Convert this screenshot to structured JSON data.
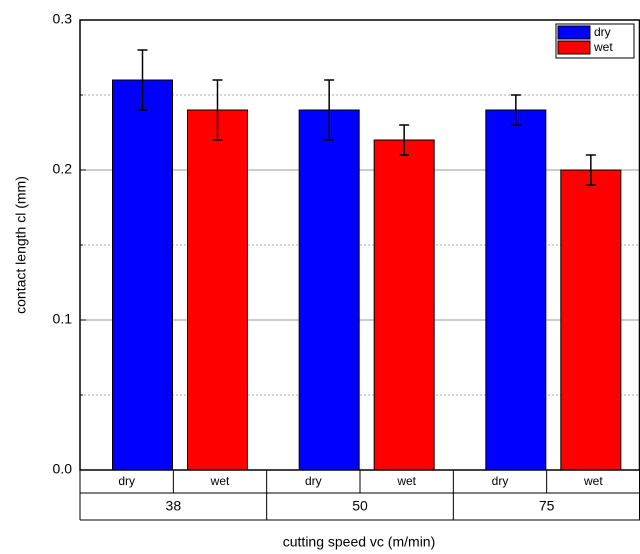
{
  "chart_data": {
    "type": "bar",
    "x_label": "cutting speed vc (m/min)",
    "y_label": "contact length cl (mm)",
    "categories": [
      "38",
      "50",
      "75"
    ],
    "series": [
      {
        "name": "dry",
        "color": "#0000ff",
        "values": [
          0.26,
          0.24,
          0.24
        ],
        "errors": [
          0.02,
          0.02,
          0.01
        ]
      },
      {
        "name": "wet",
        "color": "#ff0000",
        "values": [
          0.24,
          0.22,
          0.2
        ],
        "errors": [
          0.02,
          0.01,
          0.01
        ]
      }
    ],
    "ylim": [
      0,
      0.3
    ],
    "yticks": [
      {
        "value": 0,
        "label": "0.0"
      },
      0.1,
      0.2,
      0.3
    ],
    "minor_yticks": [
      0.05,
      0.15,
      0.25
    ],
    "grid": true,
    "legend": "top-right"
  }
}
